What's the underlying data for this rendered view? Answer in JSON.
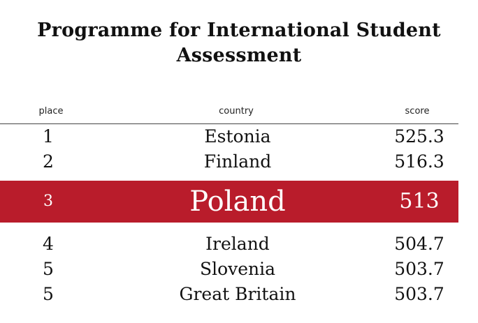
{
  "chart_data": {
    "type": "table",
    "title": "Programme for International Student Assessment",
    "columns": [
      "place",
      "country",
      "score"
    ],
    "rows": [
      {
        "place": "1",
        "country": "Estonia",
        "score": "525.3"
      },
      {
        "place": "2",
        "country": "Finland",
        "score": "516.3"
      },
      {
        "place": "3",
        "country": "Poland",
        "score": "513",
        "highlighted": true
      },
      {
        "place": "4",
        "country": "Ireland",
        "score": "504.7"
      },
      {
        "place": "5",
        "country": "Slovenia",
        "score": "503.7"
      },
      {
        "place": "5",
        "country": "Great Britain",
        "score": "503.7"
      }
    ],
    "highlight_color": "#b91c2b"
  }
}
